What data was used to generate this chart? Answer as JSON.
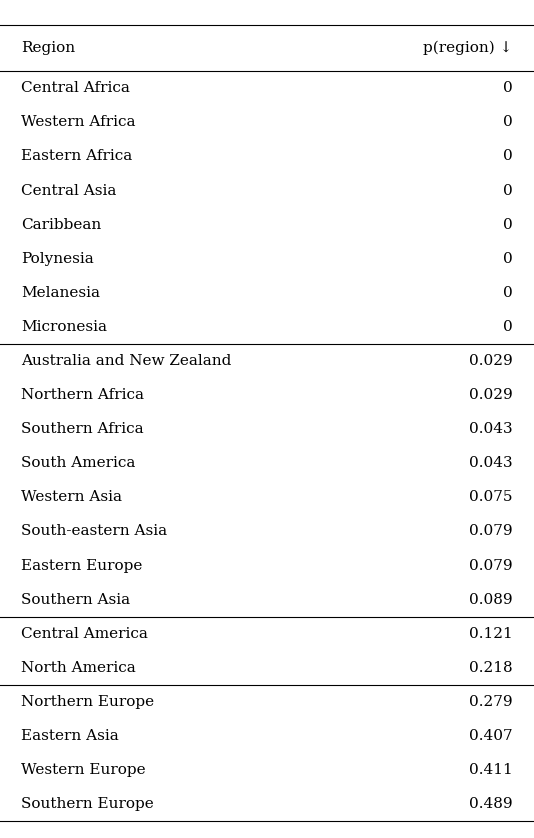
{
  "headers": [
    "Region",
    "p(region) ↓"
  ],
  "groups": [
    {
      "rows": [
        [
          "Central Africa",
          "0"
        ],
        [
          "Western Africa",
          "0"
        ],
        [
          "Eastern Africa",
          "0"
        ],
        [
          "Central Asia",
          "0"
        ],
        [
          "Caribbean",
          "0"
        ],
        [
          "Polynesia",
          "0"
        ],
        [
          "Melanesia",
          "0"
        ],
        [
          "Micronesia",
          "0"
        ]
      ]
    },
    {
      "rows": [
        [
          "Australia and New Zealand",
          "0.029"
        ],
        [
          "Northern Africa",
          "0.029"
        ],
        [
          "Southern Africa",
          "0.043"
        ],
        [
          "South America",
          "0.043"
        ],
        [
          "Western Asia",
          "0.075"
        ],
        [
          "South-eastern Asia",
          "0.079"
        ],
        [
          "Eastern Europe",
          "0.079"
        ],
        [
          "Southern Asia",
          "0.089"
        ]
      ]
    },
    {
      "rows": [
        [
          "Central America",
          "0.121"
        ],
        [
          "North America",
          "0.218"
        ]
      ]
    },
    {
      "rows": [
        [
          "Northern Europe",
          "0.279"
        ],
        [
          "Eastern Asia",
          "0.407"
        ],
        [
          "Western Europe",
          "0.411"
        ],
        [
          "Southern Europe",
          "0.489"
        ]
      ]
    }
  ],
  "background_color": "#ffffff",
  "text_color": "#000000",
  "font_size": 11,
  "header_font_size": 11
}
